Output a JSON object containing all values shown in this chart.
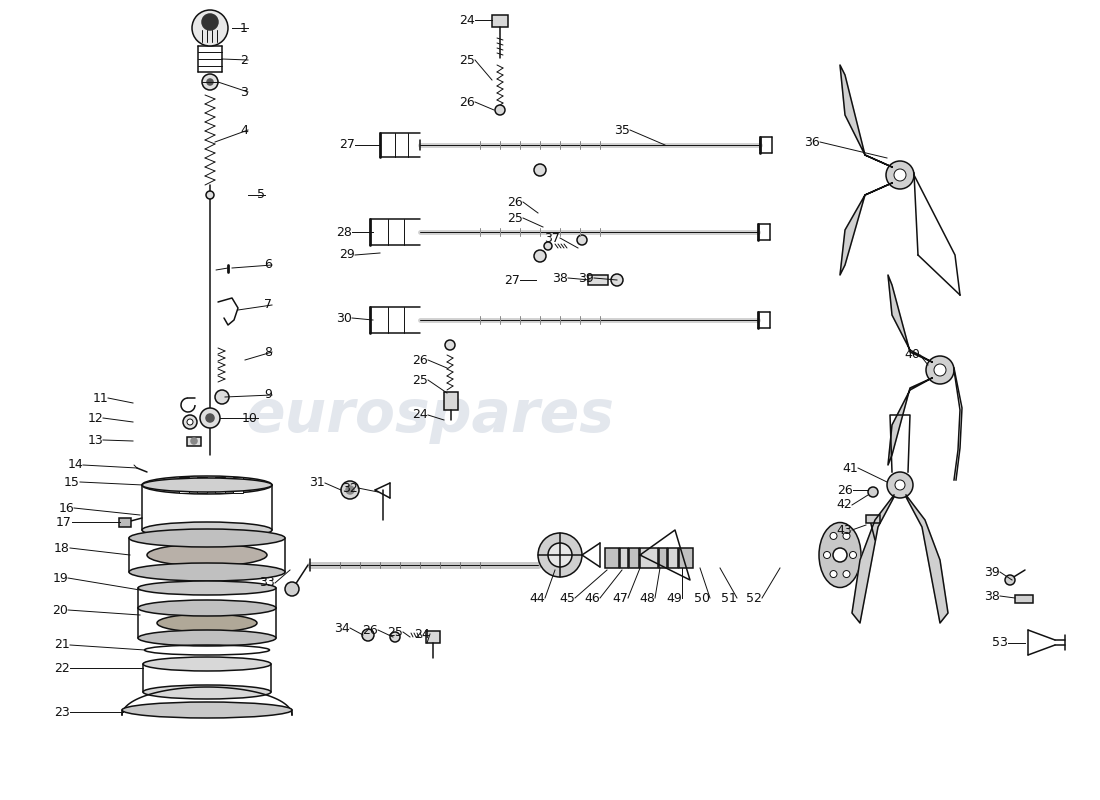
{
  "background_color": "#ffffff",
  "line_color": "#111111",
  "watermark_color": "#c8d0dc",
  "label_fontsize": 9,
  "lw_thin": 0.7,
  "lw_med": 1.1,
  "lw_thick": 2.0,
  "lw_rod": 3.5
}
